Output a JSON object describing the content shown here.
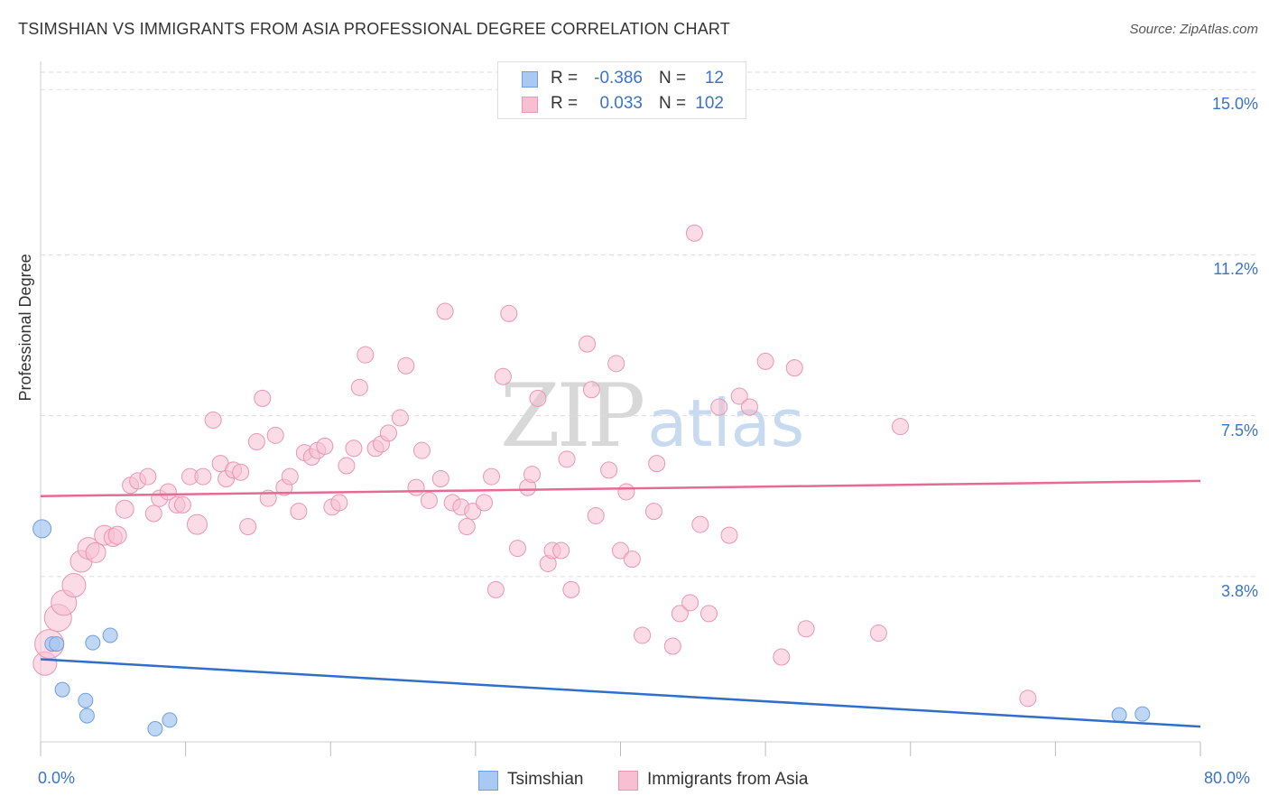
{
  "header": {
    "title": "TSIMSHIAN VS IMMIGRANTS FROM ASIA PROFESSIONAL DEGREE CORRELATION CHART",
    "source": "Source: ZipAtlas.com"
  },
  "watermark": {
    "zip": "ZIP",
    "atlas": "atlas"
  },
  "legend": {
    "r_label": "R =",
    "n_label": "N =",
    "series": [
      {
        "name": "Tsimshian",
        "r": "-0.386",
        "n": "12"
      },
      {
        "name": "Immigrants from Asia",
        "r": "0.033",
        "n": "102"
      }
    ]
  },
  "colors": {
    "tsimshian_fill": "#a9c8f2",
    "tsimshian_stroke": "#6f9fde",
    "tsimshian_line": "#2f6fcc",
    "asia_fill": "#f7bfd1",
    "asia_stroke": "#e995b3",
    "asia_line": "#e66a93",
    "axis_text": "#3b73c9",
    "grid": "#dddddd"
  },
  "chart_data": {
    "type": "scatter",
    "title": "TSIMSHIAN VS IMMIGRANTS FROM ASIA PROFESSIONAL DEGREE CORRELATION CHART",
    "xlabel": "",
    "ylabel": "Professional Degree",
    "xlim": [
      0,
      80
    ],
    "ylim": [
      0,
      15.4
    ],
    "x_tick_labels": [
      "0.0%",
      "80.0%"
    ],
    "y_ticks": [
      3.8,
      7.5,
      11.2,
      15.0
    ],
    "y_tick_labels": [
      "3.8%",
      "7.5%",
      "11.2%",
      "15.0%"
    ],
    "grid": true,
    "legend_position": "top-center",
    "series": [
      {
        "name": "Tsimshian",
        "r": -0.386,
        "n": 12,
        "trend": {
          "x0": 0,
          "y0": 1.9,
          "x1": 80,
          "y1": 0.35
        },
        "points": [
          {
            "x": 0.1,
            "y": 4.9,
            "s": 10
          },
          {
            "x": 0.8,
            "y": 2.25,
            "s": 8
          },
          {
            "x": 1.1,
            "y": 2.25,
            "s": 8
          },
          {
            "x": 1.5,
            "y": 1.2,
            "s": 8
          },
          {
            "x": 3.1,
            "y": 0.95,
            "s": 8
          },
          {
            "x": 3.2,
            "y": 0.6,
            "s": 8
          },
          {
            "x": 3.6,
            "y": 2.28,
            "s": 8
          },
          {
            "x": 4.8,
            "y": 2.45,
            "s": 8
          },
          {
            "x": 7.9,
            "y": 0.3,
            "s": 8
          },
          {
            "x": 8.9,
            "y": 0.5,
            "s": 8
          },
          {
            "x": 74.4,
            "y": 0.62,
            "s": 8
          },
          {
            "x": 76.0,
            "y": 0.64,
            "s": 8
          }
        ]
      },
      {
        "name": "Immigrants from Asia",
        "r": 0.033,
        "n": 102,
        "trend": {
          "x0": 0,
          "y0": 5.65,
          "x1": 80,
          "y1": 6.0
        },
        "points": [
          {
            "x": 0.3,
            "y": 1.8,
            "s": 13
          },
          {
            "x": 0.6,
            "y": 2.25,
            "s": 16
          },
          {
            "x": 1.2,
            "y": 2.85,
            "s": 15
          },
          {
            "x": 1.6,
            "y": 3.2,
            "s": 14
          },
          {
            "x": 2.3,
            "y": 3.6,
            "s": 13
          },
          {
            "x": 2.8,
            "y": 4.15,
            "s": 12
          },
          {
            "x": 3.3,
            "y": 4.45,
            "s": 12
          },
          {
            "x": 3.8,
            "y": 4.35,
            "s": 11
          },
          {
            "x": 4.4,
            "y": 4.75,
            "s": 11
          },
          {
            "x": 5.0,
            "y": 4.7,
            "s": 10
          },
          {
            "x": 5.3,
            "y": 4.75,
            "s": 10
          },
          {
            "x": 5.8,
            "y": 5.35,
            "s": 10
          },
          {
            "x": 6.2,
            "y": 5.9,
            "s": 9
          },
          {
            "x": 6.7,
            "y": 6.0,
            "s": 9
          },
          {
            "x": 7.4,
            "y": 6.1,
            "s": 9
          },
          {
            "x": 7.8,
            "y": 5.25,
            "s": 9
          },
          {
            "x": 8.2,
            "y": 5.6,
            "s": 9
          },
          {
            "x": 8.8,
            "y": 5.75,
            "s": 9
          },
          {
            "x": 9.4,
            "y": 5.45,
            "s": 9
          },
          {
            "x": 9.8,
            "y": 5.45,
            "s": 9
          },
          {
            "x": 10.3,
            "y": 6.1,
            "s": 9
          },
          {
            "x": 10.8,
            "y": 5.0,
            "s": 11
          },
          {
            "x": 11.2,
            "y": 6.1,
            "s": 9
          },
          {
            "x": 11.9,
            "y": 7.4,
            "s": 9
          },
          {
            "x": 12.4,
            "y": 6.4,
            "s": 9
          },
          {
            "x": 12.8,
            "y": 6.05,
            "s": 9
          },
          {
            "x": 13.3,
            "y": 6.25,
            "s": 9
          },
          {
            "x": 13.8,
            "y": 6.2,
            "s": 9
          },
          {
            "x": 14.3,
            "y": 4.95,
            "s": 9
          },
          {
            "x": 14.9,
            "y": 6.9,
            "s": 9
          },
          {
            "x": 15.3,
            "y": 7.9,
            "s": 9
          },
          {
            "x": 15.7,
            "y": 5.6,
            "s": 9
          },
          {
            "x": 16.2,
            "y": 7.05,
            "s": 9
          },
          {
            "x": 16.8,
            "y": 5.85,
            "s": 9
          },
          {
            "x": 17.2,
            "y": 6.1,
            "s": 9
          },
          {
            "x": 17.8,
            "y": 5.3,
            "s": 9
          },
          {
            "x": 18.2,
            "y": 6.65,
            "s": 9
          },
          {
            "x": 18.7,
            "y": 6.55,
            "s": 9
          },
          {
            "x": 19.1,
            "y": 6.7,
            "s": 9
          },
          {
            "x": 19.6,
            "y": 6.8,
            "s": 9
          },
          {
            "x": 20.1,
            "y": 5.4,
            "s": 9
          },
          {
            "x": 20.6,
            "y": 5.5,
            "s": 9
          },
          {
            "x": 21.1,
            "y": 6.35,
            "s": 9
          },
          {
            "x": 21.6,
            "y": 6.75,
            "s": 9
          },
          {
            "x": 22.0,
            "y": 8.15,
            "s": 9
          },
          {
            "x": 22.4,
            "y": 8.9,
            "s": 9
          },
          {
            "x": 23.1,
            "y": 6.75,
            "s": 9
          },
          {
            "x": 23.5,
            "y": 6.85,
            "s": 9
          },
          {
            "x": 24.0,
            "y": 7.1,
            "s": 9
          },
          {
            "x": 24.8,
            "y": 7.45,
            "s": 9
          },
          {
            "x": 25.2,
            "y": 8.65,
            "s": 9
          },
          {
            "x": 25.9,
            "y": 5.85,
            "s": 9
          },
          {
            "x": 26.3,
            "y": 6.7,
            "s": 9
          },
          {
            "x": 26.8,
            "y": 5.55,
            "s": 9
          },
          {
            "x": 27.6,
            "y": 6.05,
            "s": 9
          },
          {
            "x": 27.9,
            "y": 9.9,
            "s": 9
          },
          {
            "x": 28.4,
            "y": 5.5,
            "s": 9
          },
          {
            "x": 29.0,
            "y": 5.4,
            "s": 9
          },
          {
            "x": 29.4,
            "y": 4.95,
            "s": 9
          },
          {
            "x": 29.8,
            "y": 5.3,
            "s": 9
          },
          {
            "x": 30.6,
            "y": 5.5,
            "s": 9
          },
          {
            "x": 31.1,
            "y": 6.1,
            "s": 9
          },
          {
            "x": 31.4,
            "y": 3.5,
            "s": 9
          },
          {
            "x": 31.9,
            "y": 8.4,
            "s": 9
          },
          {
            "x": 32.3,
            "y": 9.85,
            "s": 9
          },
          {
            "x": 32.9,
            "y": 4.45,
            "s": 9
          },
          {
            "x": 33.6,
            "y": 5.85,
            "s": 9
          },
          {
            "x": 33.9,
            "y": 6.15,
            "s": 9
          },
          {
            "x": 34.3,
            "y": 7.9,
            "s": 9
          },
          {
            "x": 35.0,
            "y": 4.1,
            "s": 9
          },
          {
            "x": 35.3,
            "y": 4.4,
            "s": 9
          },
          {
            "x": 35.9,
            "y": 4.4,
            "s": 9
          },
          {
            "x": 36.3,
            "y": 6.5,
            "s": 9
          },
          {
            "x": 36.6,
            "y": 3.5,
            "s": 9
          },
          {
            "x": 37.7,
            "y": 9.15,
            "s": 9
          },
          {
            "x": 38.0,
            "y": 8.1,
            "s": 9
          },
          {
            "x": 38.3,
            "y": 5.2,
            "s": 9
          },
          {
            "x": 39.2,
            "y": 6.25,
            "s": 9
          },
          {
            "x": 39.7,
            "y": 8.7,
            "s": 9
          },
          {
            "x": 40.0,
            "y": 4.4,
            "s": 9
          },
          {
            "x": 40.4,
            "y": 5.75,
            "s": 9
          },
          {
            "x": 40.8,
            "y": 4.2,
            "s": 9
          },
          {
            "x": 41.5,
            "y": 2.45,
            "s": 9
          },
          {
            "x": 42.3,
            "y": 5.3,
            "s": 9
          },
          {
            "x": 42.5,
            "y": 6.4,
            "s": 9
          },
          {
            "x": 43.6,
            "y": 2.2,
            "s": 9
          },
          {
            "x": 44.1,
            "y": 2.95,
            "s": 9
          },
          {
            "x": 44.8,
            "y": 3.2,
            "s": 9
          },
          {
            "x": 45.1,
            "y": 11.7,
            "s": 9
          },
          {
            "x": 45.5,
            "y": 5.0,
            "s": 9
          },
          {
            "x": 46.1,
            "y": 2.95,
            "s": 9
          },
          {
            "x": 46.8,
            "y": 7.7,
            "s": 9
          },
          {
            "x": 47.5,
            "y": 4.75,
            "s": 9
          },
          {
            "x": 48.2,
            "y": 7.95,
            "s": 9
          },
          {
            "x": 48.9,
            "y": 7.7,
            "s": 9
          },
          {
            "x": 50.0,
            "y": 8.75,
            "s": 9
          },
          {
            "x": 51.1,
            "y": 1.95,
            "s": 9
          },
          {
            "x": 52.0,
            "y": 8.6,
            "s": 9
          },
          {
            "x": 52.8,
            "y": 2.6,
            "s": 9
          },
          {
            "x": 57.8,
            "y": 2.5,
            "s": 9
          },
          {
            "x": 59.3,
            "y": 7.25,
            "s": 9
          },
          {
            "x": 68.1,
            "y": 1.0,
            "s": 9
          }
        ]
      }
    ]
  }
}
